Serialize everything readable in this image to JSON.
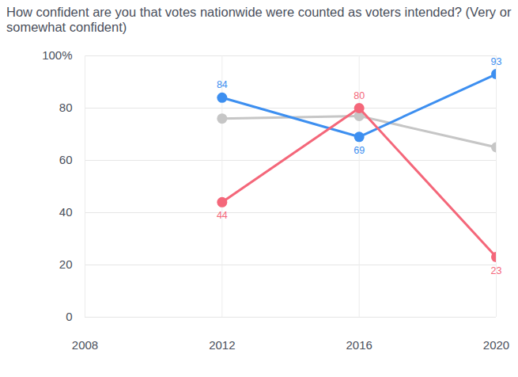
{
  "chart_data": {
    "type": "line",
    "title": "How confident are you that votes nationwide were counted as voters intended? (Very or somewhat confident)",
    "x": [
      2012,
      2016,
      2020
    ],
    "series": [
      {
        "color": "#3d8ff0",
        "values": [
          84,
          69,
          93
        ],
        "data_labels": true
      },
      {
        "color": "#f4677a",
        "values": [
          44,
          80,
          23
        ],
        "data_labels": true
      },
      {
        "color": "#c6c6c6",
        "values": [
          76,
          77,
          65
        ],
        "data_labels": false
      }
    ],
    "xlim": [
      2008,
      2020
    ],
    "xticks": [
      2008,
      2012,
      2016,
      2020
    ],
    "ylim": [
      0,
      100
    ],
    "yticks": [
      0,
      20,
      40,
      60,
      80,
      {
        "value": 100,
        "label": "100%"
      }
    ],
    "grid": true,
    "marker": "circle"
  }
}
